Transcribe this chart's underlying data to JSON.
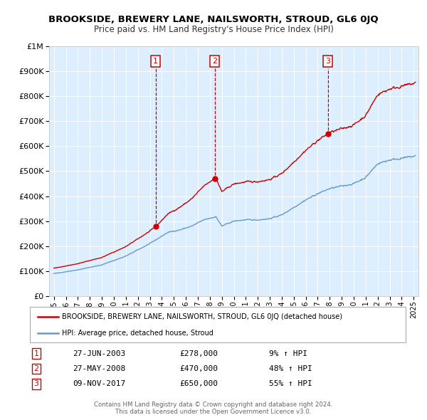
{
  "title": "BROOKSIDE, BREWERY LANE, NAILSWORTH, STROUD, GL6 0JQ",
  "subtitle": "Price paid vs. HM Land Registry's House Price Index (HPI)",
  "sales": [
    {
      "date": "2003-06-27",
      "price": 278000,
      "label": "1"
    },
    {
      "date": "2008-05-27",
      "price": 470000,
      "label": "2"
    },
    {
      "date": "2017-11-09",
      "price": 650000,
      "label": "3"
    }
  ],
  "sale_annotations": [
    {
      "label": "1",
      "date": "27-JUN-2003",
      "price": "£278,000",
      "hpi": "9% ↑ HPI"
    },
    {
      "label": "2",
      "date": "27-MAY-2008",
      "price": "£470,000",
      "hpi": "48% ↑ HPI"
    },
    {
      "label": "3",
      "date": "09-NOV-2017",
      "price": "£650,000",
      "hpi": "55% ↑ HPI"
    }
  ],
  "legend_line1": "BROOKSIDE, BREWERY LANE, NAILSWORTH, STROUD, GL6 0JQ (detached house)",
  "legend_line2": "HPI: Average price, detached house, Stroud",
  "footer": "Contains HM Land Registry data © Crown copyright and database right 2024.\nThis data is licensed under the Open Government Licence v3.0.",
  "red_color": "#cc0000",
  "blue_color": "#6699cc",
  "background_color": "#ddeeff",
  "ylim": [
    0,
    1000000
  ],
  "xlabel_years": [
    "1995",
    "1996",
    "1997",
    "1998",
    "1999",
    "2000",
    "2001",
    "2002",
    "2003",
    "2004",
    "2005",
    "2006",
    "2007",
    "2008",
    "2009",
    "2010",
    "2011",
    "2012",
    "2013",
    "2014",
    "2015",
    "2016",
    "2017",
    "2018",
    "2019",
    "2020",
    "2021",
    "2022",
    "2023",
    "2024",
    "2025"
  ],
  "hpi_checkpoints_x": [
    1995.0,
    1997.0,
    1999.0,
    2001.0,
    2003.0,
    2004.5,
    2005.5,
    2006.5,
    2007.5,
    2008.5,
    2009.0,
    2010.0,
    2011.0,
    2012.0,
    2013.0,
    2014.0,
    2015.0,
    2016.0,
    2017.0,
    2018.0,
    2019.0,
    2020.0,
    2021.0,
    2022.0,
    2023.0,
    2024.5,
    2025.1
  ],
  "hpi_checkpoints_y": [
    90000,
    105000,
    125000,
    160000,
    210000,
    255000,
    265000,
    280000,
    305000,
    318000,
    280000,
    300000,
    305000,
    305000,
    310000,
    325000,
    355000,
    385000,
    410000,
    430000,
    440000,
    450000,
    475000,
    530000,
    545000,
    555000,
    560000
  ],
  "sale_dates_year": [
    2003.487,
    2008.404,
    2017.854
  ],
  "sale_prices": [
    278000,
    470000,
    650000
  ]
}
